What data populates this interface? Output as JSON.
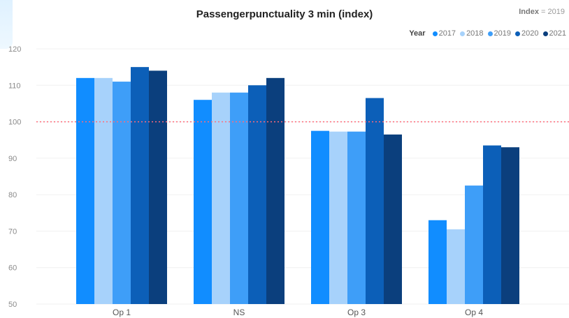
{
  "chart_data": {
    "type": "bar",
    "title": "Passengerpunctuality 3 min (index)",
    "index_note": {
      "label": "Index",
      "value": "= 2019"
    },
    "legend_title": "Year",
    "categories": [
      "Op 1",
      "NS",
      "Op 3",
      "Op 4"
    ],
    "series": [
      {
        "name": "2017",
        "color": "#118dff",
        "values": [
          112,
          106,
          97.5,
          73
        ]
      },
      {
        "name": "2018",
        "color": "#a7d2fb",
        "values": [
          112,
          108,
          97.3,
          70.5
        ]
      },
      {
        "name": "2019",
        "color": "#3e9ef8",
        "values": [
          111,
          108,
          97.3,
          82.5
        ]
      },
      {
        "name": "2020",
        "color": "#0c5fb8",
        "values": [
          115,
          110,
          106.5,
          93.5
        ]
      },
      {
        "name": "2021",
        "color": "#0b3f7d",
        "values": [
          114,
          112,
          96.5,
          93
        ]
      }
    ],
    "ylim": [
      50,
      120
    ],
    "yticks": [
      50,
      60,
      70,
      80,
      90,
      100,
      110,
      120
    ],
    "reference_line": {
      "value": 100,
      "color": "#ff6b7a"
    },
    "grid": true,
    "legend_position": "top-right"
  }
}
